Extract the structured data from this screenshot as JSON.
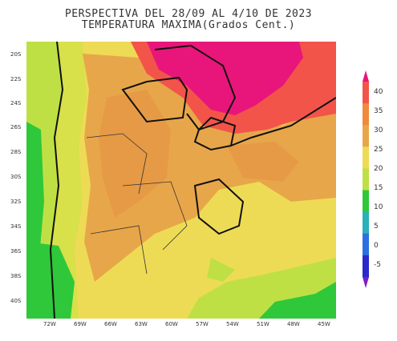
{
  "title": {
    "line1": "PERSPECTIVA DEL 28/09 AL 4/10 DE 2023",
    "line2": "TEMPERATURA MAXIMA(Grados Cent.)"
  },
  "latitude_ticks": [
    "20S",
    "22S",
    "24S",
    "26S",
    "28S",
    "30S",
    "32S",
    "34S",
    "36S",
    "38S",
    "40S"
  ],
  "longitude_ticks": [
    "72W",
    "69W",
    "66W",
    "63W",
    "60W",
    "57W",
    "54W",
    "51W",
    "48W",
    "45W"
  ],
  "legend": {
    "labels": [
      "40",
      "35",
      "30",
      "25",
      "20",
      "15",
      "10",
      "5",
      "0",
      "-5"
    ],
    "colors": [
      "#e8167a",
      "#f2544a",
      "#f08a3c",
      "#e8a64a",
      "#eedb55",
      "#bfe045",
      "#2ec83a",
      "#2ab0b8",
      "#2d6fe0",
      "#2a2acb",
      "#7a1fc4"
    ]
  }
}
